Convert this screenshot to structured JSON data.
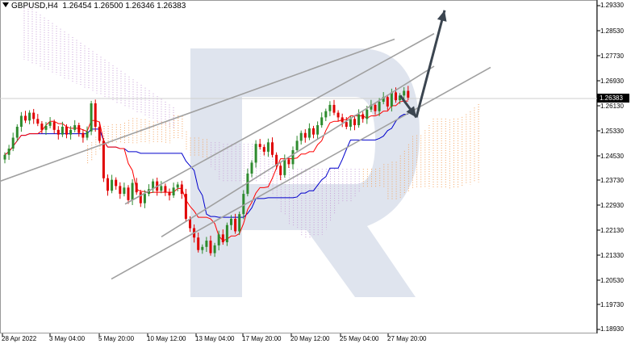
{
  "header": {
    "symbol": "GBPUSD,H4",
    "ohlc": "1.26454 1.26500 1.26346 1.26383"
  },
  "price_axis": {
    "labels": [
      "1.29330",
      "1.28530",
      "1.27730",
      "1.26930",
      "1.26130",
      "1.25330",
      "1.24530",
      "1.23730",
      "1.22930",
      "1.22130",
      "1.21330",
      "1.20530",
      "1.19730",
      "1.18930"
    ],
    "current_price": "1.26383"
  },
  "time_axis": {
    "labels": [
      "28 Apr 2022",
      "3 May 04:00",
      "5 May 20:00",
      "10 May 12:00",
      "13 May 04:00",
      "17 May 20:00",
      "20 May 12:00",
      "25 May 04:00",
      "27 May 20:00"
    ]
  },
  "colors": {
    "bull_candle": "#2e8b2e",
    "bear_candle": "#e00000",
    "tenkan": "#ff0000",
    "kijun": "#0000cc",
    "cloud_bull": "#f4a460",
    "cloud_bear": "#c8a0d8",
    "channel": "#a0a0a0",
    "arrow": "#3b4550",
    "watermark": "#dfe4ee"
  },
  "chart_data": {
    "type": "candlestick",
    "instrument": "GBPUSD",
    "timeframe": "H4",
    "ylim": [
      1.1893,
      1.2973
    ],
    "current_price": 1.26383,
    "ohlc_last": {
      "open": 1.26454,
      "high": 1.265,
      "low": 1.26346,
      "close": 1.26383
    },
    "time_labels": [
      "28 Apr 2022",
      "3 May 04:00",
      "5 May 20:00",
      "10 May 12:00",
      "13 May 04:00",
      "17 May 20:00",
      "20 May 12:00",
      "25 May 04:00",
      "27 May 20:00"
    ],
    "closes": [
      1.2455,
      1.2475,
      1.251,
      1.2545,
      1.258,
      1.2565,
      1.259,
      1.257,
      1.2555,
      1.2535,
      1.2548,
      1.256,
      1.2535,
      1.252,
      1.2545,
      1.252,
      1.2535,
      1.255,
      1.2525,
      1.251,
      1.253,
      1.262,
      1.2545,
      1.25,
      1.238,
      1.234,
      1.2375,
      1.2355,
      1.233,
      1.235,
      1.231,
      1.2365,
      1.2335,
      1.23,
      1.233,
      1.2345,
      1.237,
      1.234,
      1.2355,
      1.2335,
      1.2325,
      1.235,
      1.236,
      1.233,
      1.225,
      1.222,
      1.219,
      1.215,
      1.216,
      1.218,
      1.214,
      1.2165,
      1.22,
      1.2175,
      1.223,
      1.225,
      1.221,
      1.2265,
      1.233,
      1.2395,
      1.243,
      1.249,
      1.248,
      1.2465,
      1.2495,
      1.2455,
      1.242,
      1.239,
      1.244,
      1.2425,
      1.247,
      1.25,
      1.2525,
      1.251,
      1.254,
      1.252,
      1.255,
      1.2575,
      1.2595,
      1.2615,
      1.259,
      1.2575,
      1.256,
      1.2545,
      1.257,
      1.255,
      1.2585,
      1.257,
      1.26,
      1.2615,
      1.2595,
      1.2625,
      1.264,
      1.261,
      1.2655,
      1.263,
      1.2645,
      1.266,
      1.26383
    ],
    "channels": [
      {
        "start": [
          "28 Apr 2022",
          1.2375
        ],
        "end": [
          "25 May 04:00",
          1.2765
        ]
      },
      {
        "start": [
          "10 May 12:00",
          1.234
        ],
        "end": [
          "27 May 20:00",
          1.2765
        ]
      },
      {
        "start": [
          "13 May 04:00",
          1.2265
        ],
        "end": [
          "27 May 20:00",
          1.265
        ]
      },
      {
        "start": [
          "10 May 12:00",
          1.2125
        ],
        "end": [
          "27 May 20:00",
          1.2555
        ]
      }
    ],
    "forecast": [
      {
        "from": 1.2645,
        "to": 1.2575,
        "direction": "down"
      },
      {
        "from": 1.2575,
        "to": 1.2918,
        "direction": "up"
      }
    ]
  }
}
